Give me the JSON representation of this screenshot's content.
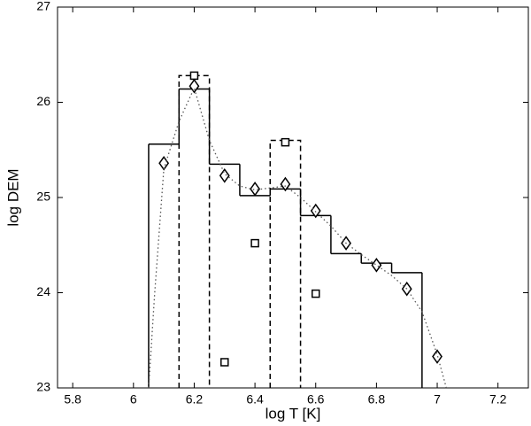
{
  "chart_data": {
    "type": "line",
    "xlabel": "log  T  [K]",
    "ylabel": "log  DEM",
    "xlim": [
      5.75,
      7.3
    ],
    "ylim": [
      23,
      27
    ],
    "xticks": [
      5.8,
      6,
      6.2,
      6.4,
      6.6,
      6.8,
      7,
      7.2
    ],
    "yticks": [
      23,
      24,
      25,
      26,
      27
    ],
    "series": [
      {
        "style": "step",
        "color": "#000000",
        "bins": [
          6.05,
          6.15,
          6.25,
          6.35,
          6.45,
          6.55,
          6.65,
          6.75,
          6.85,
          6.95
        ],
        "values": [
          25.56,
          26.14,
          25.35,
          25.02,
          25.09,
          24.81,
          24.41,
          24.31,
          24.21
        ]
      },
      {
        "style": "dashed-box",
        "color": "#000000",
        "x_left": [
          6.15,
          6.45
        ],
        "x_right": [
          6.25,
          6.55
        ],
        "values": [
          26.28,
          25.6
        ]
      },
      {
        "style": "square",
        "color": "#000000",
        "x": [
          6.2,
          6.3,
          6.4,
          6.5,
          6.6
        ],
        "values": [
          26.28,
          23.27,
          24.52,
          25.58,
          23.99
        ]
      },
      {
        "style": "diamond",
        "color": "#000000",
        "x": [
          6.1,
          6.2,
          6.3,
          6.4,
          6.5,
          6.6,
          6.7,
          6.8,
          6.9,
          7.0
        ],
        "values": [
          25.36,
          26.17,
          25.23,
          25.09,
          25.14,
          24.86,
          24.52,
          24.29,
          24.04,
          23.33
        ]
      },
      {
        "style": "dotted",
        "color": "#555555",
        "x": [
          6.05,
          6.07,
          6.1,
          6.15,
          6.2,
          6.25,
          6.3,
          6.35,
          6.4,
          6.45,
          6.5,
          6.55,
          6.6,
          6.65,
          6.7,
          6.75,
          6.8,
          6.85,
          6.9,
          6.95,
          7.0,
          7.03
        ],
        "values": [
          23.0,
          24.0,
          25.3,
          25.8,
          26.15,
          25.6,
          25.25,
          25.12,
          25.08,
          25.1,
          25.12,
          25.0,
          24.85,
          24.7,
          24.52,
          24.4,
          24.29,
          24.18,
          24.04,
          23.8,
          23.35,
          23.0
        ]
      }
    ]
  }
}
